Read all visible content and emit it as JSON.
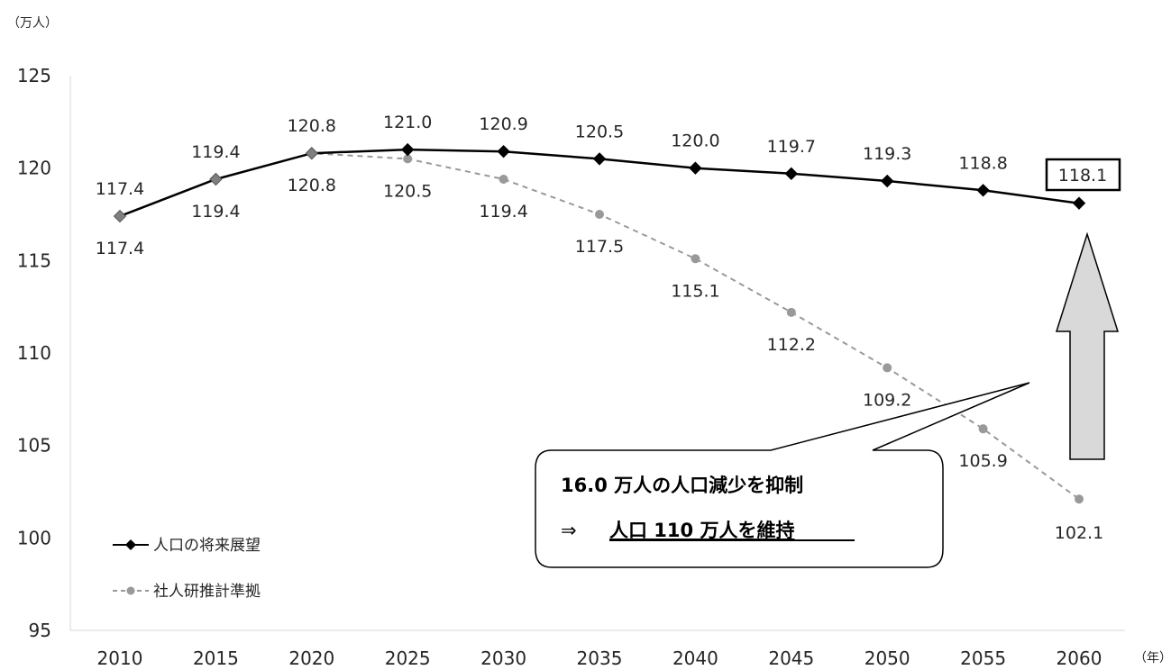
{
  "chart_data": {
    "type": "line",
    "y_unit": "（万人）",
    "x_unit": "（年）",
    "categories": [
      "2010",
      "2015",
      "2020",
      "2025",
      "2030",
      "2035",
      "2040",
      "2045",
      "2050",
      "2055",
      "2060"
    ],
    "ylim": [
      95,
      125
    ],
    "yticks": [
      "95",
      "100",
      "105",
      "110",
      "115",
      "120",
      "125"
    ],
    "grid": false,
    "legend_position": "bottom-left",
    "series": [
      {
        "name": "人口の将来展望",
        "color": "#000000",
        "marker": "diamond",
        "line_style": "solid",
        "values": [
          117.4,
          119.4,
          120.8,
          121.0,
          120.9,
          120.5,
          120.0,
          119.7,
          119.3,
          118.8,
          118.1
        ],
        "labels": [
          "117.4",
          "119.4",
          "120.8",
          "121.0",
          "120.9",
          "120.5",
          "120.0",
          "119.7",
          "119.3",
          "118.8",
          "118.1"
        ]
      },
      {
        "name": "社人研推計準拠",
        "color": "#999999",
        "marker": "circle",
        "line_style": "dashed",
        "values": [
          117.4,
          119.4,
          120.8,
          120.5,
          119.4,
          117.5,
          115.1,
          112.2,
          109.2,
          105.9,
          102.1
        ],
        "labels": [
          "117.4",
          "119.4",
          "120.8",
          "120.5",
          "119.4",
          "117.5",
          "115.1",
          "112.2",
          "109.2",
          "105.9",
          "102.1"
        ]
      }
    ],
    "annotations": {
      "callout_line1": "16.0 万人の人口減少を抑制",
      "callout_line2_prefix": "⇒",
      "callout_line2": "人口 110 万人を維持",
      "boxed_value": "118.1",
      "arrow": "up"
    }
  }
}
